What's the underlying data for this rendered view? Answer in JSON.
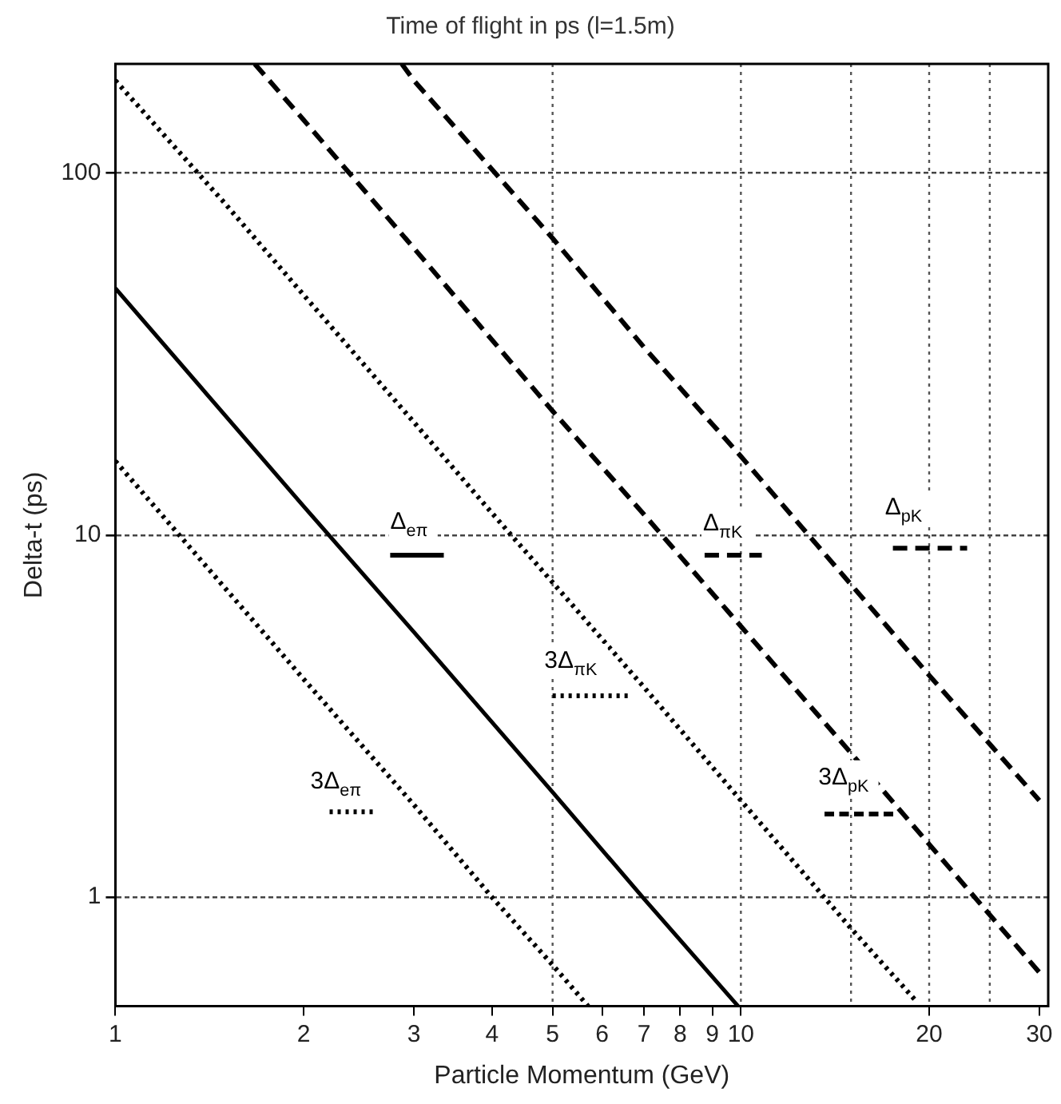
{
  "chart_data": {
    "type": "line",
    "title": "Time of flight in ps (l=1.5m)",
    "xlabel": "Particle Momentum (GeV)",
    "ylabel": "Delta-t (ps)",
    "log": "xy",
    "xlim": [
      1,
      31
    ],
    "ylim": [
      0.5,
      200
    ],
    "xticks": [
      1,
      2,
      3,
      4,
      5,
      6,
      7,
      8,
      9,
      10,
      20,
      30
    ],
    "yticks": [
      1,
      10,
      100
    ],
    "grid": "y",
    "legend": false,
    "marker": "none",
    "series": [
      {
        "name": "Δ$_{eπ}$",
        "color": "#000000",
        "line_style": "solid",
        "x": [
          1,
          2,
          3,
          5,
          7,
          9.9
        ],
        "values": [
          48,
          12,
          5.4,
          1.95,
          0.99,
          0.5
        ]
      },
      {
        "name": "3Δ$_{eπ}$",
        "color": "#000000",
        "line_style": "dotted",
        "x": [
          1,
          2,
          3,
          4,
          5,
          5.7
        ],
        "values": [
          16,
          4,
          1.8,
          1.0,
          0.65,
          0.5
        ]
      },
      {
        "name": "3Δ$_{πK}$",
        "color": "#000000",
        "line_style": "dotted",
        "x": [
          1,
          1.5,
          2,
          3,
          4,
          5,
          7,
          10,
          15,
          19
        ],
        "values": [
          180,
          82,
          46,
          20.5,
          11.5,
          7.4,
          3.8,
          1.85,
          0.82,
          0.52
        ]
      },
      {
        "name": "Δ$_{πK}$",
        "color": "#000000",
        "line_style": "dashed",
        "x": [
          1.67,
          2,
          3,
          5,
          7,
          10,
          15,
          20,
          30
        ],
        "values": [
          200,
          140,
          62,
          22,
          11.4,
          5.6,
          2.5,
          1.4,
          0.62
        ]
      },
      {
        "name": "Δ$_{pK}$",
        "color": "#000000",
        "line_style": "dashed",
        "x": [
          2.87,
          3,
          5,
          7,
          10,
          15,
          20,
          30
        ],
        "values": [
          200,
          180,
          66,
          33,
          16.5,
          7.3,
          4.1,
          1.85
        ]
      }
    ],
    "ref_lines": [
      {
        "axis": "x",
        "value": 5,
        "line_style": "dotted"
      },
      {
        "axis": "x",
        "value": 10,
        "line_style": "dotted"
      },
      {
        "axis": "x",
        "value": 15,
        "line_style": "dotted"
      },
      {
        "axis": "x",
        "value": 20,
        "line_style": "dotted"
      },
      {
        "axis": "x",
        "value": 25,
        "line_style": "dotted"
      }
    ],
    "annotations": [
      {
        "text": "3Δ$_{pK}$",
        "x": 15,
        "y": 2.5
      }
    ]
  }
}
